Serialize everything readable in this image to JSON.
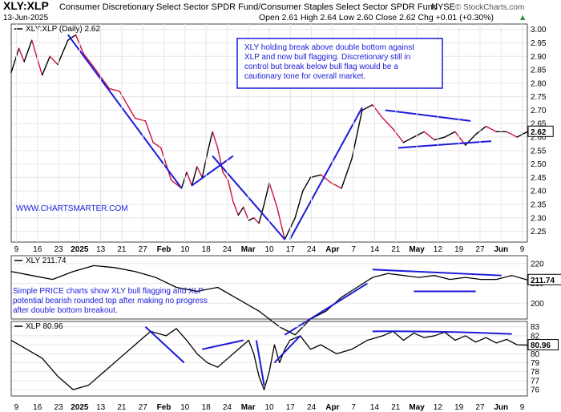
{
  "header": {
    "symbol": "XLY:XLP",
    "name": "Consumer Discretionary Select Sector SPDR Fund/Consumer Staples Select Sector SPDR Fund",
    "exchange": "NYSE",
    "brand": "© StockCharts.com",
    "date": "13-Jun-2025",
    "ohlc": "Open 2.61  High 2.64  Low 2.60  Close 2.62  Chg +0.01 (+0.30%)",
    "ohlc_marker": "▲"
  },
  "colors": {
    "price_up": "#000000",
    "price_down": "#d0103a",
    "trend_lines": "#1a1adb",
    "grid": "#e6e6e6",
    "text_note": "#1a1adb"
  },
  "icons": {
    "main_legend": "xly-xlp-line-icon",
    "xly_legend": "xly-line-icon",
    "xlp_legend": "xlp-line-icon"
  },
  "annotations": {
    "main_note_lines": [
      "XLY holding break above double bottom against",
      "XLP and now bull flagging. Discretionary still in",
      "control but break below bull flag would be a",
      "cautionary tone for overall market."
    ],
    "watermark": "WWW.CHARTSMARTER.COM",
    "xly_note_lines": [
      "Simple PRICE charts show XLY bull flagging and XLP",
      "potential bearish rounded top after making no progress",
      "after double bottom breakout."
    ]
  },
  "chart_data": [
    {
      "type": "line",
      "legend": "XLY:XLP (Daily) 2.62",
      "last_value_label": "2.62",
      "y_ticks": [
        2.25,
        2.3,
        2.35,
        2.4,
        2.45,
        2.5,
        2.55,
        2.6,
        2.65,
        2.7,
        2.75,
        2.8,
        2.85,
        2.9,
        2.95,
        3.0
      ],
      "ylim": [
        2.21,
        3.02
      ],
      "x_ticks": [
        "9",
        "16",
        "23",
        "2025",
        "13",
        "21",
        "27",
        "Feb",
        "10",
        "18",
        "24",
        "Mar",
        "10",
        "17",
        "24",
        "Apr",
        "7",
        "14",
        "21",
        "May",
        "12",
        "19",
        "27",
        "Jun",
        "9"
      ],
      "grid": true,
      "x": [
        0,
        3,
        5,
        8,
        12,
        15,
        18,
        22,
        25,
        28,
        32,
        35,
        38,
        42,
        45,
        48,
        52,
        55,
        58,
        62,
        66,
        68,
        70,
        72,
        74,
        76,
        78,
        80,
        82,
        84,
        86,
        88,
        90,
        92,
        94,
        96,
        98,
        100,
        103,
        106,
        110,
        113,
        116,
        120,
        124,
        128,
        132,
        136,
        140,
        144,
        148,
        152,
        156,
        160,
        164,
        168,
        172,
        176,
        180,
        184,
        188,
        192,
        196,
        200
      ],
      "values": [
        2.84,
        2.93,
        2.88,
        2.96,
        2.83,
        2.9,
        2.87,
        2.96,
        2.98,
        2.91,
        2.86,
        2.82,
        2.78,
        2.77,
        2.72,
        2.67,
        2.66,
        2.58,
        2.56,
        2.44,
        2.41,
        2.47,
        2.42,
        2.49,
        2.45,
        2.54,
        2.62,
        2.56,
        2.47,
        2.44,
        2.36,
        2.31,
        2.34,
        2.29,
        2.3,
        2.28,
        2.35,
        2.43,
        2.34,
        2.22,
        2.3,
        2.4,
        2.45,
        2.46,
        2.43,
        2.41,
        2.52,
        2.7,
        2.72,
        2.67,
        2.63,
        2.58,
        2.6,
        2.62,
        2.59,
        2.6,
        2.62,
        2.57,
        2.61,
        2.64,
        2.62,
        2.62,
        2.6,
        2.62
      ],
      "trend_lines": [
        {
          "from": [
            22,
            2.98
          ],
          "to": [
            66,
            2.41
          ]
        },
        {
          "from": [
            70,
            2.42
          ],
          "to": [
            86,
            2.53
          ]
        },
        {
          "from": [
            78,
            2.53
          ],
          "to": [
            106,
            2.22
          ]
        },
        {
          "from": [
            108,
            2.22
          ],
          "to": [
            136,
            2.71
          ]
        },
        {
          "from": [
            145,
            2.7
          ],
          "to": [
            178,
            2.66
          ]
        },
        {
          "from": [
            150,
            2.56
          ],
          "to": [
            186,
            2.585
          ]
        }
      ]
    },
    {
      "type": "line",
      "legend": "XLY 211.74",
      "last_value_label": "211.74",
      "y_ticks": [
        200,
        210,
        220
      ],
      "ylim": [
        192,
        224
      ],
      "x": [
        0,
        8,
        16,
        24,
        32,
        40,
        48,
        56,
        64,
        72,
        80,
        88,
        96,
        100,
        104,
        110,
        116,
        122,
        128,
        134,
        140,
        146,
        152,
        158,
        164,
        170,
        176,
        182,
        188,
        194,
        200
      ],
      "values": [
        216,
        214,
        212,
        216,
        219,
        218,
        216,
        213,
        208,
        206,
        208,
        202,
        196,
        192,
        188,
        184,
        192,
        196,
        203,
        208,
        213,
        215,
        214,
        213,
        214,
        212,
        213,
        212,
        212,
        214,
        211.74
      ],
      "trend_lines": [
        {
          "from": [
            106,
            184
          ],
          "to": [
            138,
            210
          ]
        },
        {
          "from": [
            140,
            217
          ],
          "to": [
            190,
            214
          ]
        },
        {
          "from": [
            156,
            206
          ],
          "to": [
            180,
            206
          ]
        }
      ]
    },
    {
      "type": "line",
      "legend": "XLP 80.96",
      "last_value_label": "80.96",
      "y_ticks": [
        76,
        77,
        78,
        79,
        80,
        81,
        82,
        83
      ],
      "ylim": [
        75.3,
        83.6
      ],
      "x": [
        0,
        6,
        12,
        18,
        24,
        30,
        36,
        42,
        48,
        54,
        60,
        64,
        68,
        72,
        76,
        80,
        84,
        88,
        92,
        94,
        96,
        98,
        100,
        102,
        104,
        106,
        108,
        112,
        116,
        120,
        126,
        132,
        138,
        144,
        148,
        152,
        156,
        160,
        164,
        168,
        172,
        176,
        180,
        184,
        188,
        192,
        196,
        200
      ],
      "values": [
        81.5,
        80.5,
        79.5,
        77.5,
        76.0,
        76.5,
        78.0,
        79.5,
        81.0,
        82.5,
        82.0,
        82.8,
        81.5,
        80.0,
        79.0,
        78.5,
        79.5,
        80.5,
        81.5,
        80.0,
        77.5,
        76.0,
        78.0,
        81.0,
        79.0,
        80.5,
        81.5,
        82.0,
        80.5,
        81.0,
        80.0,
        80.5,
        81.5,
        82.0,
        82.5,
        81.5,
        82.3,
        81.8,
        82.0,
        82.4,
        81.5,
        82.0,
        81.3,
        81.8,
        81.2,
        81.6,
        81.0,
        80.96
      ],
      "trend_lines": [
        {
          "from": [
            52,
            83.0
          ],
          "to": [
            67,
            79.0
          ]
        },
        {
          "from": [
            74,
            80.5
          ],
          "to": [
            90,
            81.5
          ]
        },
        {
          "from": [
            95,
            81.5
          ],
          "to": [
            98,
            76.5
          ]
        },
        {
          "from": [
            102,
            79.0
          ],
          "to": [
            112,
            82.0
          ]
        },
        {
          "from": [
            140,
            82.5
          ],
          "to": [
            194,
            82.2
          ],
          "curve_peak": 83.4
        }
      ]
    }
  ]
}
